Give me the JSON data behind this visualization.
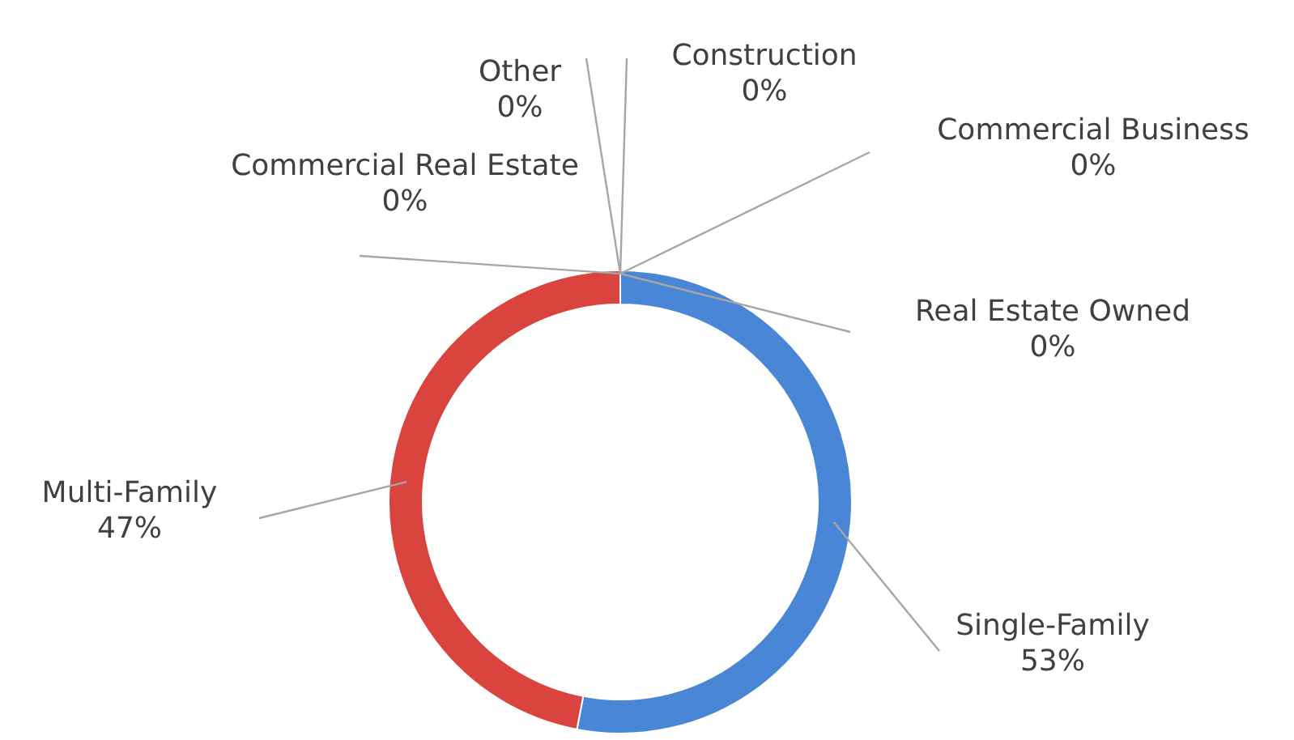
{
  "chart_data": {
    "type": "donut",
    "categories": [
      "Single-Family",
      "Multi-Family",
      "Commercial Real Estate",
      "Other",
      "Construction",
      "Commercial Business",
      "Real Estate Owned"
    ],
    "values": [
      53,
      47,
      0,
      0,
      0,
      0,
      0
    ],
    "colors": [
      "#4a86d6",
      "#d9443f",
      "#9bbb59",
      "#8064a2",
      "#4bacc6",
      "#f79646",
      "#2c4d75"
    ],
    "value_labels": [
      "53%",
      "47%",
      "0%",
      "0%",
      "0%",
      "0%",
      "0%"
    ]
  }
}
